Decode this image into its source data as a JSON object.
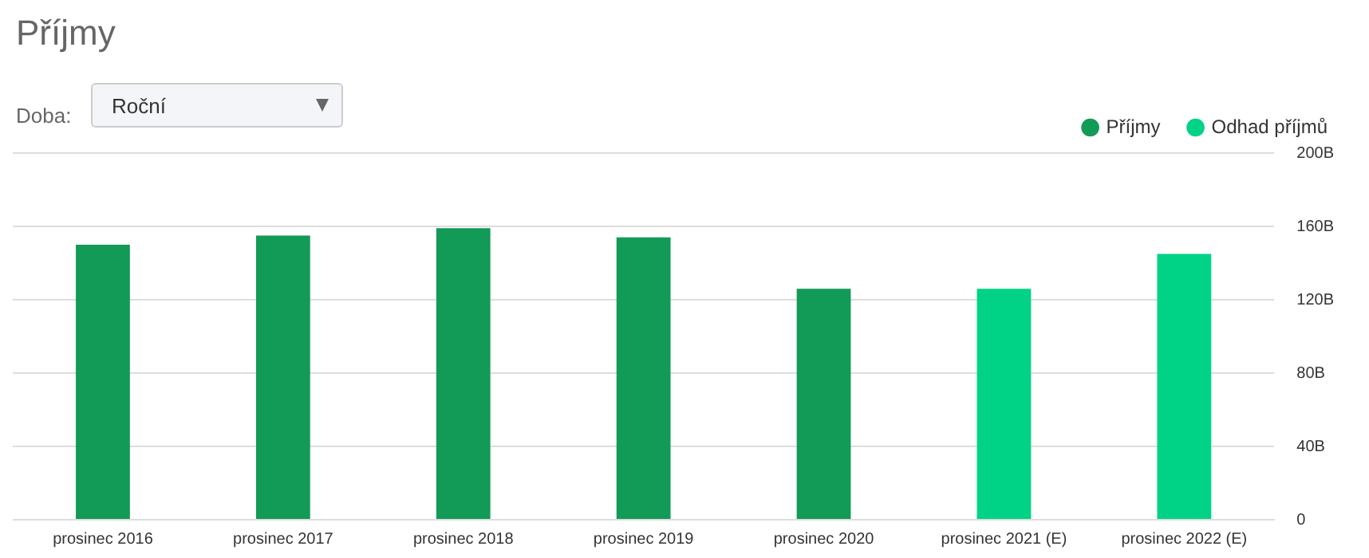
{
  "chart_data": {
    "type": "bar",
    "title": "Příjmy",
    "annotations": [
      "Doba:",
      "Roční"
    ],
    "categories": [
      "prosinec 2016",
      "prosinec 2017",
      "prosinec 2018",
      "prosinec 2019",
      "prosinec 2020",
      "prosinec 2021 (E)",
      "prosinec 2022 (E)"
    ],
    "series": [
      {
        "name": "Příjmy",
        "color": "#129a57",
        "values": [
          150,
          155,
          159,
          154,
          126,
          null,
          null
        ]
      },
      {
        "name": "Odhad příjmů",
        "color": "#00d385",
        "values": [
          null,
          null,
          null,
          null,
          null,
          126,
          145
        ]
      }
    ],
    "ylim": [
      0,
      200
    ],
    "yticks": [
      {
        "value": 0,
        "label": "0"
      },
      {
        "value": 40,
        "label": "40B"
      },
      {
        "value": 80,
        "label": "80B"
      },
      {
        "value": 120,
        "label": "120B"
      },
      {
        "value": 160,
        "label": "160B"
      },
      {
        "value": 200,
        "label": "200B"
      }
    ],
    "grid": "y",
    "legend": "top right"
  }
}
